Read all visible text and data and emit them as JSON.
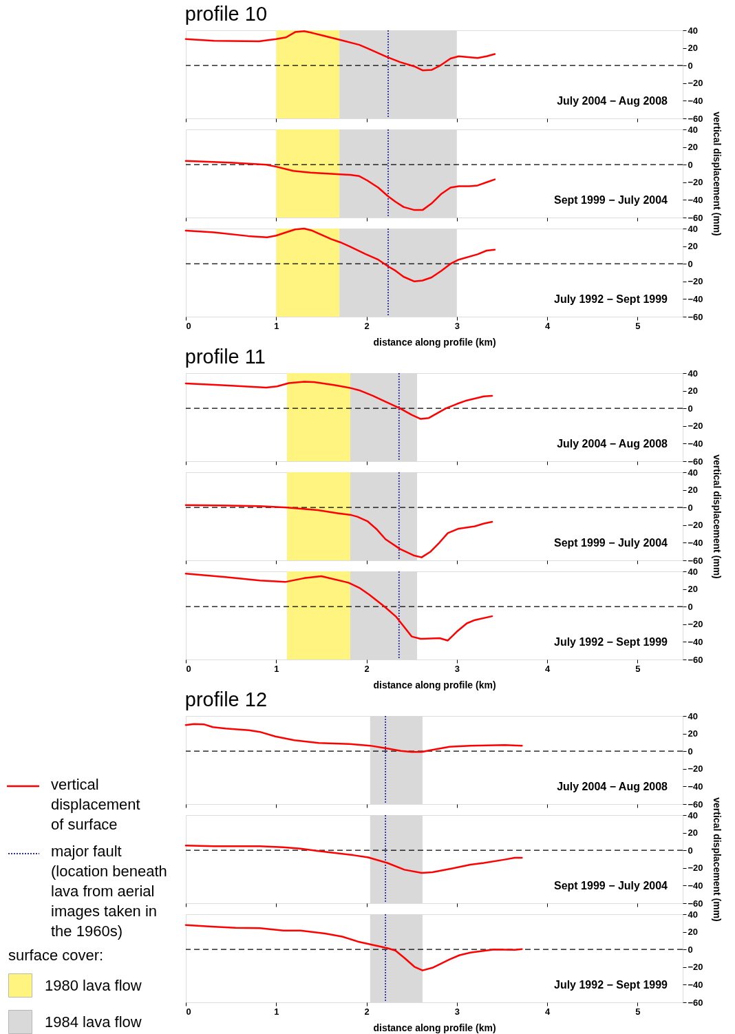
{
  "chart_data": [
    {
      "type": "line",
      "title": "profile 10",
      "legend": "bottom left",
      "xlim": [
        0,
        5.5
      ],
      "xticks": [
        0,
        1,
        2,
        3,
        4,
        5
      ],
      "ylim": [
        -60,
        40
      ],
      "yticks": [
        40,
        20,
        0,
        {
          "value": -20,
          "label": "−20"
        },
        {
          "value": -40,
          "label": "−40"
        },
        {
          "value": -60,
          "label": "−60"
        }
      ],
      "tick_labels": "y",
      "line_style": "solid",
      "annotations": [
        "July 2004 − Aug 2008"
      ],
      "ref_lines": [
        {
          "axis": "y",
          "value": 0,
          "color": "#000000",
          "line_style": "dashed"
        },
        {
          "axis": "x",
          "value": 2.24,
          "color": "#2a2aa6",
          "line_style": "dotted"
        }
      ],
      "bands": [
        {
          "axis": "x",
          "from": 1.0,
          "to": 1.7,
          "color": "#fff47f",
          "label": "1980 lava flow"
        },
        {
          "axis": "x",
          "from": 1.7,
          "to": 3.0,
          "color": "#d9d9d9",
          "label": "1984 lava flow"
        }
      ],
      "series": [
        {
          "color": "#ff0000",
          "x": [
            0,
            0.31,
            0.81,
            1.0,
            1.11,
            1.21,
            1.31,
            1.4,
            1.52,
            1.71,
            1.92,
            2.01,
            2.22,
            2.37,
            2.53,
            2.62,
            2.72,
            2.81,
            2.93,
            3.02,
            3.23,
            3.33,
            3.42
          ],
          "values": [
            30,
            28,
            27.5,
            30,
            32,
            38,
            39,
            37,
            34,
            29,
            23.5,
            19.6,
            10,
            4,
            -1,
            -5.5,
            -5,
            -0.4,
            8,
            10.5,
            8.6,
            10.5,
            13
          ]
        }
      ]
    },
    {
      "type": "line",
      "xlim": [
        0,
        5.5
      ],
      "xticks": [
        0,
        1,
        2,
        3,
        4,
        5
      ],
      "ylim": [
        -60,
        40
      ],
      "yticks": [
        40,
        20,
        0,
        {
          "value": -20,
          "label": "−20"
        },
        {
          "value": -40,
          "label": "−40"
        },
        {
          "value": -60,
          "label": "−60"
        }
      ],
      "tick_labels": "y",
      "line_style": "solid",
      "ylabel": "vertical displacement (mm)",
      "annotations": [
        "Sept 1999 − July 2004"
      ],
      "ref_lines": [
        {
          "axis": "y",
          "value": 0,
          "color": "#000000",
          "line_style": "dashed"
        },
        {
          "axis": "x",
          "value": 2.24,
          "color": "#2a2aa6",
          "line_style": "dotted"
        }
      ],
      "bands": [
        {
          "axis": "x",
          "from": 1.0,
          "to": 1.7,
          "color": "#fff47f"
        },
        {
          "axis": "x",
          "from": 1.7,
          "to": 3.0,
          "color": "#d9d9d9"
        }
      ],
      "series": [
        {
          "color": "#ff0000",
          "x": [
            0,
            0.5,
            0.89,
            1.0,
            1.19,
            1.38,
            1.71,
            1.82,
            1.92,
            2.01,
            2.13,
            2.24,
            2.32,
            2.41,
            2.53,
            2.62,
            2.72,
            2.83,
            2.93,
            3.02,
            3.14,
            3.23,
            3.33,
            3.42
          ],
          "values": [
            4.3,
            2.3,
            0,
            -2.3,
            -7,
            -9,
            -11,
            -11.6,
            -13,
            -18,
            -26,
            -36,
            -42,
            -48,
            -51.5,
            -51.5,
            -44,
            -33,
            -26,
            -24.5,
            -24.5,
            -23.6,
            -20,
            -16.7
          ]
        }
      ]
    },
    {
      "type": "line",
      "xlim": [
        0,
        5.5
      ],
      "xticks": [
        0,
        1,
        2,
        3,
        4,
        5
      ],
      "ylim": [
        -60,
        40
      ],
      "yticks": [
        40,
        20,
        0,
        {
          "value": -20,
          "label": "−20"
        },
        {
          "value": -40,
          "label": "−40"
        },
        {
          "value": -60,
          "label": "−60"
        }
      ],
      "line_style": "solid",
      "xlabel": "distance along profile (km)",
      "annotations": [
        "July 1992 − Sept 1999"
      ],
      "ref_lines": [
        {
          "axis": "y",
          "value": 0,
          "color": "#000000",
          "line_style": "dashed"
        },
        {
          "axis": "x",
          "value": 2.24,
          "color": "#2a2aa6",
          "line_style": "dotted"
        }
      ],
      "bands": [
        {
          "axis": "x",
          "from": 1.0,
          "to": 1.7,
          "color": "#fff47f"
        },
        {
          "axis": "x",
          "from": 1.7,
          "to": 3.0,
          "color": "#d9d9d9"
        }
      ],
      "series": [
        {
          "color": "#ff0000",
          "x": [
            0,
            0.31,
            0.69,
            0.9,
            1.0,
            1.11,
            1.21,
            1.31,
            1.4,
            1.61,
            1.71,
            1.82,
            1.99,
            2.13,
            2.24,
            2.32,
            2.41,
            2.53,
            2.62,
            2.72,
            2.83,
            2.93,
            3.02,
            3.23,
            3.33,
            3.42
          ],
          "values": [
            37.6,
            35.7,
            31.5,
            30,
            32,
            35.7,
            39,
            40,
            37.6,
            28,
            24.4,
            19.4,
            11,
            4.7,
            -3,
            -7.8,
            -14.7,
            -20,
            -19,
            -15.5,
            -7.8,
            0,
            4.7,
            10.8,
            15,
            16
          ]
        }
      ]
    },
    {
      "type": "line",
      "title": "profile 11",
      "xlim": [
        0,
        5.5
      ],
      "xticks": [
        0,
        1,
        2,
        3,
        4,
        5
      ],
      "ylim": [
        -60,
        40
      ],
      "yticks": [
        40,
        20,
        0,
        {
          "value": -20,
          "label": "−20"
        },
        {
          "value": -40,
          "label": "−40"
        },
        {
          "value": -60,
          "label": "−60"
        }
      ],
      "tick_labels": "y",
      "line_style": "solid",
      "annotations": [
        "July 2004 − Aug 2008"
      ],
      "ref_lines": [
        {
          "axis": "y",
          "value": 0,
          "color": "#000000",
          "line_style": "dashed"
        },
        {
          "axis": "x",
          "value": 2.36,
          "color": "#2a2aa6",
          "line_style": "dotted"
        }
      ],
      "bands": [
        {
          "axis": "x",
          "from": 1.12,
          "to": 1.82,
          "color": "#fff47f"
        },
        {
          "axis": "x",
          "from": 1.82,
          "to": 2.56,
          "color": "#d9d9d9"
        }
      ],
      "series": [
        {
          "color": "#ff0000",
          "x": [
            0,
            0.4,
            0.89,
            1.01,
            1.14,
            1.31,
            1.42,
            1.65,
            1.83,
            1.92,
            2.07,
            2.2,
            2.37,
            2.5,
            2.6,
            2.69,
            2.88,
            3.0,
            3.11,
            3.3,
            3.39
          ],
          "values": [
            28.3,
            26.4,
            23.6,
            25,
            28.7,
            30.2,
            29.8,
            26.4,
            22.9,
            20.5,
            14.3,
            8,
            0,
            -7.4,
            -12,
            -10.9,
            0,
            5,
            9,
            13.6,
            14.3
          ]
        }
      ]
    },
    {
      "type": "line",
      "xlim": [
        0,
        5.5
      ],
      "xticks": [
        0,
        1,
        2,
        3,
        4,
        5
      ],
      "ylim": [
        -60,
        40
      ],
      "yticks": [
        40,
        20,
        0,
        {
          "value": -20,
          "label": "−20"
        },
        {
          "value": -40,
          "label": "−40"
        },
        {
          "value": -60,
          "label": "−60"
        }
      ],
      "tick_labels": "y",
      "line_style": "solid",
      "ylabel": "vertical displacement (mm)",
      "annotations": [
        "Sept 1999 − July 2004"
      ],
      "ref_lines": [
        {
          "axis": "y",
          "value": 0,
          "color": "#000000",
          "line_style": "dashed"
        },
        {
          "axis": "x",
          "value": 2.36,
          "color": "#2a2aa6",
          "line_style": "dotted"
        }
      ],
      "bands": [
        {
          "axis": "x",
          "from": 1.12,
          "to": 1.82,
          "color": "#fff47f"
        },
        {
          "axis": "x",
          "from": 1.82,
          "to": 2.56,
          "color": "#d9d9d9"
        }
      ],
      "series": [
        {
          "color": "#ff0000",
          "x": [
            0,
            0.4,
            0.82,
            1.12,
            1.46,
            1.69,
            1.83,
            1.9,
            2.01,
            2.11,
            2.21,
            2.37,
            2.52,
            2.61,
            2.71,
            2.81,
            2.9,
            3.02,
            3.2,
            3.3,
            3.39
          ],
          "values": [
            2.7,
            2.3,
            1.5,
            0,
            -3,
            -6.6,
            -8.5,
            -10.5,
            -15.5,
            -24.4,
            -36,
            -47,
            -54.3,
            -56.6,
            -50,
            -39.5,
            -29,
            -24,
            -21.3,
            -18.2,
            -16.3
          ]
        }
      ]
    },
    {
      "type": "line",
      "xlim": [
        0,
        5.5
      ],
      "xticks": [
        0,
        1,
        2,
        3,
        4,
        5
      ],
      "ylim": [
        -60,
        40
      ],
      "yticks": [
        40,
        20,
        0,
        {
          "value": -20,
          "label": "−20"
        },
        {
          "value": -40,
          "label": "−40"
        },
        {
          "value": -60,
          "label": "−60"
        }
      ],
      "line_style": "solid",
      "xlabel": "distance along profile (km)",
      "annotations": [
        "July 1992 − Sept 1999"
      ],
      "ref_lines": [
        {
          "axis": "y",
          "value": 0,
          "color": "#000000",
          "line_style": "dashed"
        },
        {
          "axis": "x",
          "value": 2.36,
          "color": "#2a2aa6",
          "line_style": "dotted"
        }
      ],
      "bands": [
        {
          "axis": "x",
          "from": 1.12,
          "to": 1.82,
          "color": "#fff47f"
        },
        {
          "axis": "x",
          "from": 1.82,
          "to": 2.56,
          "color": "#d9d9d9"
        }
      ],
      "series": [
        {
          "color": "#ff0000",
          "x": [
            0,
            0.44,
            0.82,
            1.1,
            1.31,
            1.5,
            1.8,
            1.92,
            2.03,
            2.2,
            2.33,
            2.5,
            2.6,
            2.81,
            2.9,
            3.0,
            3.11,
            3.2,
            3.39
          ],
          "values": [
            37.4,
            33.5,
            29.6,
            28,
            32.3,
            34.6,
            27.2,
            21.4,
            13.6,
            0,
            -11.7,
            -33.9,
            -36.6,
            -35.8,
            -38.5,
            -28.4,
            -19,
            -15.2,
            -10.9
          ]
        }
      ]
    },
    {
      "type": "line",
      "title": "profile 12",
      "xlim": [
        0,
        5.5
      ],
      "xticks": [
        0,
        1,
        2,
        3,
        4,
        5
      ],
      "ylim": [
        -60,
        40
      ],
      "yticks": [
        40,
        20,
        0,
        {
          "value": -20,
          "label": "−20"
        },
        {
          "value": -40,
          "label": "−40"
        },
        {
          "value": -60,
          "label": "−60"
        }
      ],
      "tick_labels": "y",
      "line_style": "solid",
      "annotations": [
        "July 2004 − Aug 2008"
      ],
      "ref_lines": [
        {
          "axis": "y",
          "value": 0,
          "color": "#000000",
          "line_style": "dashed"
        },
        {
          "axis": "x",
          "value": 2.21,
          "color": "#2a2aa6",
          "line_style": "dotted"
        }
      ],
      "bands": [
        {
          "axis": "x",
          "from": 2.04,
          "to": 2.62,
          "color": "#d9d9d9"
        }
      ],
      "series": [
        {
          "color": "#ff0000",
          "x": [
            0,
            0.09,
            0.2,
            0.3,
            0.44,
            0.7,
            0.82,
            0.99,
            1.2,
            1.47,
            1.81,
            2.04,
            2.23,
            2.38,
            2.5,
            2.61,
            2.73,
            2.92,
            3.15,
            3.53,
            3.72
          ],
          "values": [
            29.7,
            30.9,
            30.5,
            27.3,
            25.8,
            23.8,
            21.9,
            16.8,
            12.5,
            9.4,
            8.2,
            6.3,
            3.1,
            0.4,
            -0.8,
            -0.8,
            1.6,
            5.1,
            6.3,
            7,
            6.3
          ]
        }
      ]
    },
    {
      "type": "line",
      "xlim": [
        0,
        5.5
      ],
      "xticks": [
        0,
        1,
        2,
        3,
        4,
        5
      ],
      "ylim": [
        -60,
        40
      ],
      "yticks": [
        40,
        20,
        0,
        {
          "value": -20,
          "label": "−20"
        },
        {
          "value": -40,
          "label": "−40"
        },
        {
          "value": -60,
          "label": "−60"
        }
      ],
      "tick_labels": "y",
      "line_style": "solid",
      "ylabel": "vertical displacement (mm)",
      "annotations": [
        "Sept 1999 − July 2004"
      ],
      "ref_lines": [
        {
          "axis": "y",
          "value": 0,
          "color": "#000000",
          "line_style": "dashed"
        },
        {
          "axis": "x",
          "value": 2.21,
          "color": "#2a2aa6",
          "line_style": "dotted"
        }
      ],
      "bands": [
        {
          "axis": "x",
          "from": 2.04,
          "to": 2.62,
          "color": "#d9d9d9"
        }
      ],
      "series": [
        {
          "color": "#ff0000",
          "x": [
            0,
            0.32,
            0.82,
            1.08,
            1.27,
            1.47,
            1.85,
            2.02,
            2.23,
            2.42,
            2.61,
            2.73,
            2.95,
            3.15,
            3.3,
            3.53,
            3.64,
            3.72
          ],
          "values": [
            5.4,
            4.7,
            4.7,
            3.5,
            1.9,
            -0.8,
            -5.4,
            -8.1,
            -14.3,
            -22,
            -25.6,
            -24.8,
            -20.5,
            -16.3,
            -14.3,
            -10.5,
            -8.5,
            -8.5
          ]
        }
      ]
    },
    {
      "type": "line",
      "xlim": [
        0,
        5.5
      ],
      "xticks": [
        0,
        1,
        2,
        3,
        4,
        5
      ],
      "ylim": [
        -60,
        40
      ],
      "yticks": [
        40,
        20,
        0,
        {
          "value": -20,
          "label": "−20"
        },
        {
          "value": -40,
          "label": "−40"
        },
        {
          "value": -60,
          "label": "−60"
        }
      ],
      "line_style": "solid",
      "xlabel": "distance along profile (km)",
      "annotations": [
        "July 1992 − Sept 1999"
      ],
      "ref_lines": [
        {
          "axis": "y",
          "value": 0,
          "color": "#000000",
          "line_style": "dashed"
        },
        {
          "axis": "x",
          "value": 2.21,
          "color": "#2a2aa6",
          "line_style": "dotted"
        }
      ],
      "bands": [
        {
          "axis": "x",
          "from": 2.04,
          "to": 2.62,
          "color": "#d9d9d9"
        }
      ],
      "series": [
        {
          "color": "#ff0000",
          "x": [
            0,
            0.32,
            0.55,
            0.82,
            1.08,
            1.27,
            1.54,
            1.73,
            1.92,
            2.23,
            2.32,
            2.42,
            2.53,
            2.62,
            2.73,
            2.92,
            3.03,
            3.15,
            3.41,
            3.64,
            3.72
          ],
          "values": [
            27.7,
            25.8,
            24.6,
            24.2,
            21.5,
            21.5,
            18.1,
            14.6,
            8.5,
            1.5,
            -1.2,
            -9.6,
            -19.6,
            -23.8,
            -20.8,
            -11.2,
            -6.5,
            -3.5,
            0,
            -0.4,
            0.4
          ]
        }
      ]
    },
    {
      "type": "other",
      "annotations": [
        "vertical displacement of surface",
        "major fault (location beneath lava from aerial images taken in the 1960s)",
        "surface cover:"
      ]
    }
  ]
}
